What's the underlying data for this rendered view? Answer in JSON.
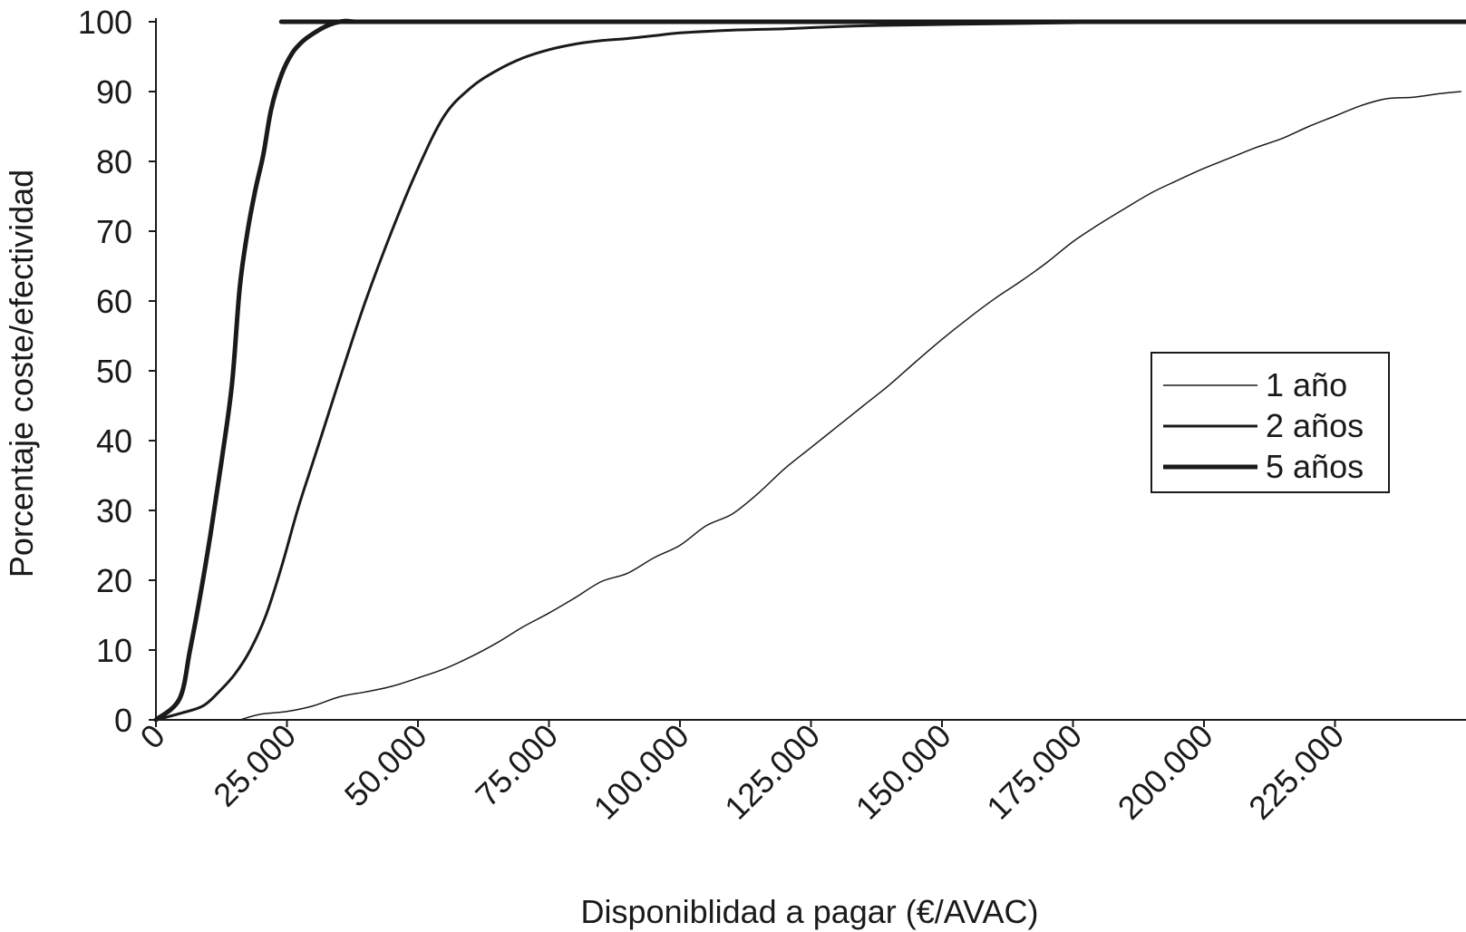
{
  "chart_data": {
    "type": "line",
    "xlabel": "Disponiblidad a pagar (€/AVAC)",
    "ylabel": "Porcentaje coste/efectividad",
    "xlim": [
      0,
      250000
    ],
    "ylim": [
      0,
      100
    ],
    "x_ticks": [
      {
        "value": 0,
        "label": "0"
      },
      {
        "value": 25000,
        "label": "25.000"
      },
      {
        "value": 50000,
        "label": "50.000"
      },
      {
        "value": 75000,
        "label": "75.000"
      },
      {
        "value": 100000,
        "label": "100.000"
      },
      {
        "value": 125000,
        "label": "125.000"
      },
      {
        "value": 150000,
        "label": "150.000"
      },
      {
        "value": 175000,
        "label": "175.000"
      },
      {
        "value": 200000,
        "label": "200.000"
      },
      {
        "value": 225000,
        "label": "225.000"
      }
    ],
    "y_ticks": [
      {
        "value": 0,
        "label": "0"
      },
      {
        "value": 10,
        "label": "10"
      },
      {
        "value": 20,
        "label": "20"
      },
      {
        "value": 30,
        "label": "30"
      },
      {
        "value": 40,
        "label": "40"
      },
      {
        "value": 50,
        "label": "50"
      },
      {
        "value": 60,
        "label": "60"
      },
      {
        "value": 70,
        "label": "70"
      },
      {
        "value": 80,
        "label": "80"
      },
      {
        "value": 90,
        "label": "90"
      },
      {
        "value": 100,
        "label": "100"
      }
    ],
    "grid": false,
    "legend_position": "right",
    "color": "#1a1a1a",
    "series": [
      {
        "name": "1 año",
        "stroke": "thin",
        "points": [
          [
            16000,
            0
          ],
          [
            20000,
            0.8
          ],
          [
            25000,
            1.2
          ],
          [
            30000,
            2
          ],
          [
            35000,
            3.3
          ],
          [
            40000,
            4
          ],
          [
            45000,
            4.8
          ],
          [
            50000,
            6
          ],
          [
            55000,
            7.3
          ],
          [
            60000,
            9
          ],
          [
            65000,
            11
          ],
          [
            70000,
            13.3
          ],
          [
            75000,
            15.3
          ],
          [
            80000,
            17.5
          ],
          [
            85000,
            19.8
          ],
          [
            90000,
            21
          ],
          [
            95000,
            23.2
          ],
          [
            100000,
            25
          ],
          [
            105000,
            27.8
          ],
          [
            110000,
            29.5
          ],
          [
            115000,
            32.5
          ],
          [
            120000,
            36
          ],
          [
            125000,
            39
          ],
          [
            130000,
            42
          ],
          [
            135000,
            45
          ],
          [
            140000,
            48
          ],
          [
            145000,
            51.3
          ],
          [
            150000,
            54.5
          ],
          [
            155000,
            57.5
          ],
          [
            160000,
            60.3
          ],
          [
            165000,
            62.8
          ],
          [
            170000,
            65.5
          ],
          [
            175000,
            68.5
          ],
          [
            180000,
            71
          ],
          [
            185000,
            73.3
          ],
          [
            190000,
            75.5
          ],
          [
            195000,
            77.3
          ],
          [
            200000,
            79
          ],
          [
            205000,
            80.5
          ],
          [
            210000,
            82
          ],
          [
            215000,
            83.3
          ],
          [
            220000,
            85
          ],
          [
            225000,
            86.5
          ],
          [
            230000,
            88
          ],
          [
            235000,
            89
          ],
          [
            240000,
            89.2
          ],
          [
            245000,
            89.7
          ],
          [
            249000,
            90
          ]
        ]
      },
      {
        "name": "2 años",
        "stroke": "medium",
        "points": [
          [
            0,
            0
          ],
          [
            5000,
            1
          ],
          [
            9000,
            2
          ],
          [
            12000,
            4
          ],
          [
            15000,
            6.5
          ],
          [
            18000,
            10
          ],
          [
            21000,
            15
          ],
          [
            24000,
            22
          ],
          [
            27000,
            30
          ],
          [
            30000,
            37
          ],
          [
            33000,
            44
          ],
          [
            36000,
            51
          ],
          [
            40000,
            60
          ],
          [
            45000,
            70
          ],
          [
            50000,
            79
          ],
          [
            55000,
            86.5
          ],
          [
            60000,
            90.5
          ],
          [
            65000,
            93
          ],
          [
            70000,
            94.8
          ],
          [
            75000,
            96
          ],
          [
            80000,
            96.8
          ],
          [
            85000,
            97.3
          ],
          [
            90000,
            97.6
          ],
          [
            95000,
            98
          ],
          [
            100000,
            98.4
          ],
          [
            110000,
            98.8
          ],
          [
            120000,
            99
          ],
          [
            130000,
            99.3
          ],
          [
            140000,
            99.5
          ],
          [
            160000,
            99.7
          ],
          [
            180000,
            99.9
          ],
          [
            200000,
            100
          ],
          [
            250000,
            100
          ]
        ]
      },
      {
        "name": "5 años",
        "stroke": "thick",
        "points": [
          [
            0,
            0
          ],
          [
            4500,
            3
          ],
          [
            6500,
            10
          ],
          [
            8500,
            18
          ],
          [
            10500,
            27
          ],
          [
            12500,
            37
          ],
          [
            14500,
            48
          ],
          [
            16000,
            62
          ],
          [
            17500,
            70
          ],
          [
            19000,
            76
          ],
          [
            20500,
            81
          ],
          [
            22000,
            87.5
          ],
          [
            24000,
            92.5
          ],
          [
            26000,
            95.5
          ],
          [
            28000,
            97.2
          ],
          [
            30000,
            98.3
          ],
          [
            32000,
            99.2
          ],
          [
            34000,
            99.8
          ],
          [
            36000,
            100.1
          ],
          [
            38000,
            100
          ],
          [
            40000,
            100
          ],
          [
            250000,
            100
          ]
        ]
      }
    ]
  }
}
